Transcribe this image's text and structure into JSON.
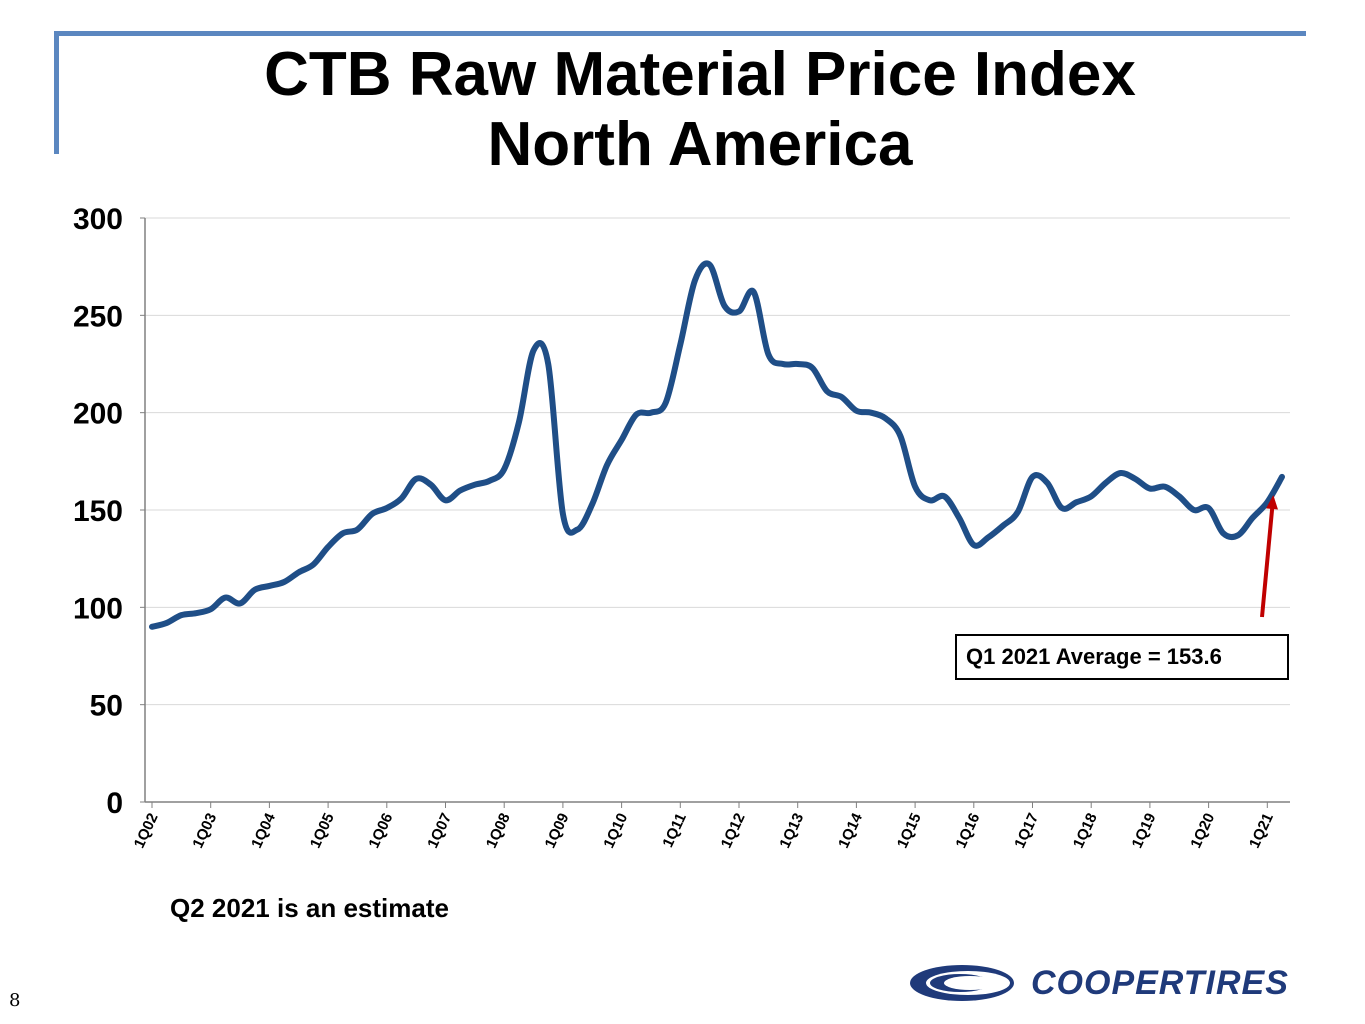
{
  "title": {
    "line1": "CTB Raw Material Price Index",
    "line2": "North America"
  },
  "chart_data": {
    "type": "line",
    "title": "CTB Raw Material Price Index North America",
    "xlabel": "",
    "ylabel": "",
    "ylim": [
      0,
      300
    ],
    "yticks": [
      0,
      50,
      100,
      150,
      200,
      250,
      300
    ],
    "categories": [
      "1Q02",
      "1Q03",
      "1Q04",
      "1Q05",
      "1Q06",
      "1Q07",
      "1Q08",
      "1Q09",
      "1Q10",
      "1Q11",
      "1Q12",
      "1Q13",
      "1Q14",
      "1Q15",
      "1Q16",
      "1Q17",
      "1Q18",
      "1Q19",
      "1Q20",
      "1Q21"
    ],
    "grid": true,
    "series": [
      {
        "name": "CTB Raw Material Price Index",
        "color": "#1f4e87",
        "x": [
          0,
          0.25,
          0.5,
          0.75,
          1,
          1.25,
          1.5,
          1.75,
          2,
          2.25,
          2.5,
          2.75,
          3,
          3.25,
          3.5,
          3.75,
          4,
          4.25,
          4.5,
          4.75,
          5,
          5.25,
          5.5,
          5.75,
          6,
          6.25,
          6.5,
          6.75,
          7,
          7.25,
          7.5,
          7.75,
          8,
          8.25,
          8.5,
          8.75,
          9,
          9.25,
          9.5,
          9.75,
          10,
          10.25,
          10.5,
          10.75,
          11,
          11.25,
          11.5,
          11.75,
          12,
          12.25,
          12.5,
          12.75,
          13,
          13.25,
          13.5,
          13.75,
          14,
          14.25,
          14.5,
          14.75,
          15,
          15.25,
          15.5,
          15.75,
          16,
          16.25,
          16.5,
          16.75,
          17,
          17.25,
          17.5,
          17.75,
          18,
          18.25,
          18.5,
          18.75,
          19,
          19.25
        ],
        "values": [
          90,
          92,
          96,
          97,
          99,
          105,
          102,
          109,
          111,
          113,
          118,
          122,
          131,
          138,
          140,
          148,
          151,
          156,
          166,
          163,
          155,
          160,
          163,
          165,
          171,
          195,
          232,
          225,
          148,
          140,
          153,
          173,
          186,
          199,
          200,
          205,
          235,
          268,
          276,
          255,
          252,
          262,
          230,
          225,
          225,
          223,
          211,
          208,
          201,
          200,
          197,
          188,
          162,
          155,
          157,
          146,
          132,
          136,
          142,
          149,
          167,
          164,
          151,
          154,
          157,
          164,
          169,
          166,
          161,
          162,
          157,
          150,
          151,
          138,
          137,
          146,
          154,
          167
        ]
      }
    ],
    "annotations": [
      {
        "text": "Q1 2021 Average = 153.6",
        "arrow_x": 19,
        "arrow_y": 153.6
      }
    ]
  },
  "annotation": {
    "label": "Q1 2021 Average = 153.6",
    "arrow_color": "#c00000"
  },
  "footnote": "Q2 2021 is an estimate",
  "logo": {
    "text": "COOPERTIRES",
    "color": "#1f3a7a",
    "icon": "cooper-swoosh-icon"
  },
  "page_number": "8"
}
